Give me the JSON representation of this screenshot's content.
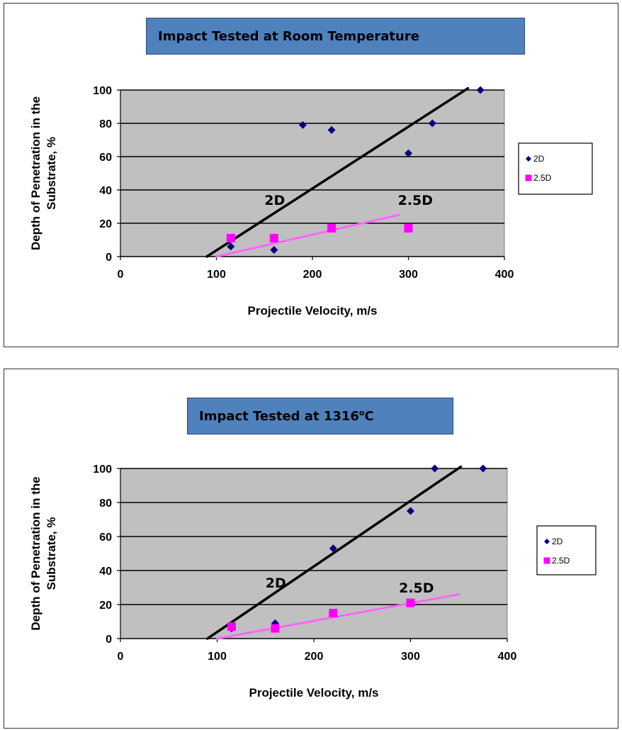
{
  "chart_data": [
    {
      "type": "scatter",
      "title": "Impact Tested at Room Temperature",
      "xlabel": "Projectile Velocity, m/s",
      "ylabel_line1": "Depth of Penetration  in the",
      "ylabel_line2": "Substrate, %",
      "xlim": [
        0,
        400
      ],
      "ylim": [
        0,
        100
      ],
      "xticks": [
        0,
        100,
        200,
        300,
        400
      ],
      "yticks": [
        0,
        20,
        40,
        60,
        80,
        100
      ],
      "grid": "horizontal",
      "legend_position": "right",
      "series": [
        {
          "name": "2D",
          "color": "#000080",
          "marker": "diamond",
          "x": [
            115,
            160,
            190,
            220,
            300,
            325,
            375
          ],
          "y": [
            6,
            4,
            79,
            76,
            62,
            80,
            100
          ]
        },
        {
          "name": "2.5D",
          "color": "#ff00ff",
          "marker": "square",
          "x": [
            115,
            160,
            220,
            300
          ],
          "y": [
            11,
            11,
            17,
            17
          ]
        }
      ],
      "trendlines": [
        {
          "color": "#000000",
          "x": [
            90,
            362
          ],
          "y": [
            0,
            101
          ]
        },
        {
          "color": "#ff66ff",
          "x": [
            100,
            290
          ],
          "y": [
            0,
            25
          ]
        }
      ],
      "annotations": [
        {
          "text": "2D",
          "x": 150,
          "y": 31
        },
        {
          "text": "2.5D",
          "x": 289,
          "y": 31
        }
      ]
    },
    {
      "type": "scatter",
      "title_main": "Impact Tested at 1316",
      "title_sup": "o",
      "title_end": "C",
      "xlabel": "Projectile Velocity, m/s",
      "ylabel_line1": "Depth of Penetration  in the",
      "ylabel_line2": "Substrate, %",
      "xlim": [
        0,
        400
      ],
      "ylim": [
        0,
        100
      ],
      "xticks": [
        0,
        100,
        200,
        300,
        400
      ],
      "yticks": [
        0,
        20,
        40,
        60,
        80,
        100
      ],
      "grid": "horizontal",
      "legend_position": "right",
      "series": [
        {
          "name": "2D",
          "color": "#000080",
          "marker": "diamond",
          "x": [
            115,
            160,
            220,
            300,
            325,
            375
          ],
          "y": [
            6,
            9,
            53,
            75,
            100,
            100
          ]
        },
        {
          "name": "2.5D",
          "color": "#ff00ff",
          "marker": "square",
          "x": [
            115,
            160,
            220,
            300
          ],
          "y": [
            7,
            6,
            15,
            21
          ]
        }
      ],
      "trendlines": [
        {
          "color": "#000000",
          "x": [
            90,
            352
          ],
          "y": [
            0,
            101
          ]
        },
        {
          "color": "#ff66ff",
          "x": [
            100,
            350
          ],
          "y": [
            0,
            26
          ]
        }
      ],
      "annotations": [
        {
          "text": "2D",
          "x": 150,
          "y": 30
        },
        {
          "text": "2.5D",
          "x": 288,
          "y": 27
        }
      ]
    }
  ]
}
